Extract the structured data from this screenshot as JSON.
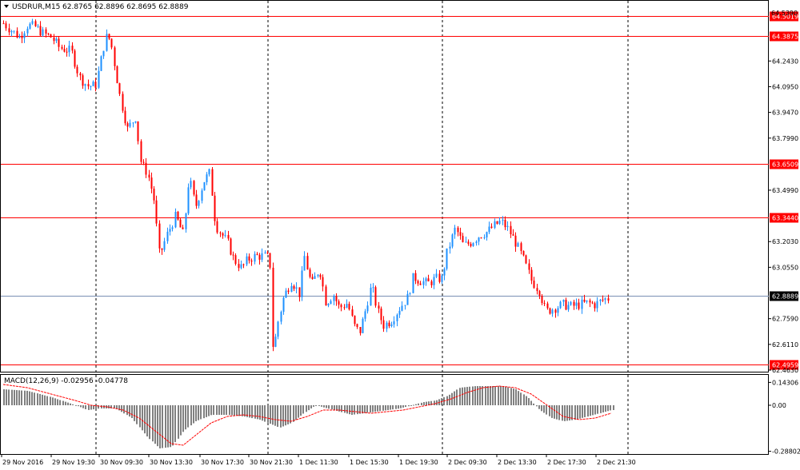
{
  "header": {
    "menu_icon": "triangle-down-icon",
    "symbol_timeframe": "USDRUR,M15",
    "ohlc": "62.8765 62.8896 62.8695 62.8889"
  },
  "colors": {
    "bull": "#1e90ff",
    "bear": "#ff0000",
    "level_line": "#ff0000",
    "price_line": "#7a8fb3",
    "histogram": "#808080",
    "signal": "#ff0000"
  },
  "price_axis": {
    "top_label": "64.5390",
    "ticks": [
      "64.5390",
      "64.2430",
      "64.0950",
      "63.9470",
      "63.7990",
      "63.4990",
      "63.2030",
      "63.0550",
      "62.7590",
      "62.6110",
      "62.4630"
    ],
    "levels": [
      {
        "value": 64.5019,
        "label": "64.5019"
      },
      {
        "value": 64.3875,
        "label": "64.3875"
      },
      {
        "value": 63.6509,
        "label": "63.6509"
      },
      {
        "value": 63.344,
        "label": "63.3440"
      },
      {
        "value": 62.4959,
        "label": "62.4959"
      }
    ],
    "current": {
      "value": 62.8889,
      "label": "62.8889"
    }
  },
  "indicator": {
    "title": "MACD(12,26,9) -0.02956 -0.04778",
    "ticks": [
      "0.14306",
      "0.00",
      "-0.28802"
    ]
  },
  "time_axis": {
    "labels": [
      "29 Nov 2016",
      "29 Nov 19:30",
      "30 Nov 09:30",
      "30 Nov 13:30",
      "30 Nov 17:30",
      "30 Nov 21:30",
      "1 Dec 11:30",
      "1 Dec 15:30",
      "1 Dec 19:30",
      "2 Dec 09:30",
      "2 Dec 13:30",
      "2 Dec 17:30",
      "2 Dec 21:30"
    ]
  },
  "chart_data": {
    "type": "candlestick",
    "symbol": "USDRUR",
    "timeframe": "M15",
    "ylim": [
      62.463,
      64.539
    ],
    "horizontal_levels": [
      64.5019,
      64.3875,
      63.6509,
      63.344,
      62.4959
    ],
    "current_price": 62.8889,
    "session_separators": [
      "29 Nov 19:30",
      "30 Nov 21:30",
      "2 Dec 09:30",
      "2 Dec 21:30"
    ],
    "price_path": [
      [
        0,
        64.46
      ],
      [
        10,
        64.42
      ],
      [
        20,
        64.38
      ],
      [
        30,
        64.45
      ],
      [
        40,
        64.44
      ],
      [
        50,
        64.4
      ],
      [
        60,
        64.38
      ],
      [
        70,
        64.32
      ],
      [
        85,
        64.3
      ],
      [
        95,
        64.15
      ],
      [
        105,
        64.1
      ],
      [
        115,
        64.1
      ],
      [
        120,
        64.2
      ],
      [
        125,
        64.32
      ],
      [
        130,
        64.4
      ],
      [
        135,
        64.33
      ],
      [
        145,
        64.05
      ],
      [
        155,
        63.85
      ],
      [
        165,
        63.92
      ],
      [
        172,
        63.65
      ],
      [
        180,
        63.6
      ],
      [
        188,
        63.45
      ],
      [
        195,
        63.12
      ],
      [
        205,
        63.25
      ],
      [
        215,
        63.35
      ],
      [
        225,
        63.24
      ],
      [
        232,
        63.58
      ],
      [
        240,
        63.4
      ],
      [
        250,
        63.55
      ],
      [
        258,
        63.6
      ],
      [
        265,
        63.3
      ],
      [
        272,
        63.25
      ],
      [
        280,
        63.2
      ],
      [
        288,
        63.1
      ],
      [
        298,
        63.05
      ],
      [
        305,
        63.1
      ],
      [
        315,
        63.12
      ],
      [
        325,
        63.12
      ],
      [
        333,
        63.11
      ],
      [
        337,
        62.55
      ],
      [
        342,
        62.72
      ],
      [
        350,
        62.88
      ],
      [
        360,
        62.98
      ],
      [
        370,
        62.9
      ],
      [
        376,
        63.12
      ],
      [
        385,
        62.95
      ],
      [
        395,
        63.05
      ],
      [
        403,
        62.85
      ],
      [
        412,
        62.9
      ],
      [
        420,
        62.82
      ],
      [
        430,
        62.85
      ],
      [
        438,
        62.72
      ],
      [
        445,
        62.68
      ],
      [
        452,
        62.8
      ],
      [
        460,
        62.95
      ],
      [
        468,
        62.8
      ],
      [
        475,
        62.72
      ],
      [
        485,
        62.75
      ],
      [
        495,
        62.82
      ],
      [
        505,
        62.88
      ],
      [
        512,
        63.0
      ],
      [
        520,
        62.98
      ],
      [
        530,
        62.96
      ],
      [
        540,
        62.99
      ],
      [
        548,
        62.99
      ],
      [
        555,
        63.15
      ],
      [
        565,
        63.28
      ],
      [
        575,
        63.18
      ],
      [
        585,
        63.2
      ],
      [
        595,
        63.24
      ],
      [
        605,
        63.26
      ],
      [
        615,
        63.3
      ],
      [
        622,
        63.32
      ],
      [
        630,
        63.28
      ],
      [
        640,
        63.2
      ],
      [
        650,
        63.1
      ],
      [
        660,
        62.98
      ],
      [
        670,
        62.92
      ],
      [
        678,
        62.8
      ],
      [
        688,
        62.82
      ],
      [
        700,
        62.84
      ],
      [
        710,
        62.83
      ],
      [
        720,
        62.84
      ],
      [
        730,
        62.85
      ],
      [
        740,
        62.84
      ],
      [
        750,
        62.87
      ],
      [
        760,
        62.88
      ]
    ],
    "macd": [
      [
        0,
        0.1
      ],
      [
        30,
        0.09
      ],
      [
        60,
        0.05
      ],
      [
        90,
        0.0
      ],
      [
        105,
        -0.03
      ],
      [
        120,
        -0.02
      ],
      [
        140,
        -0.02
      ],
      [
        160,
        -0.08
      ],
      [
        180,
        -0.2
      ],
      [
        195,
        -0.27
      ],
      [
        210,
        -0.26
      ],
      [
        225,
        -0.16
      ],
      [
        240,
        -0.1
      ],
      [
        260,
        -0.06
      ],
      [
        280,
        -0.06
      ],
      [
        300,
        -0.07
      ],
      [
        320,
        -0.09
      ],
      [
        335,
        -0.12
      ],
      [
        345,
        -0.14
      ],
      [
        360,
        -0.11
      ],
      [
        375,
        -0.05
      ],
      [
        390,
        0.0
      ],
      [
        405,
        -0.02
      ],
      [
        420,
        -0.04
      ],
      [
        435,
        -0.06
      ],
      [
        450,
        -0.05
      ],
      [
        465,
        -0.04
      ],
      [
        480,
        -0.03
      ],
      [
        495,
        -0.02
      ],
      [
        510,
        0.0
      ],
      [
        525,
        0.02
      ],
      [
        540,
        0.03
      ],
      [
        555,
        0.06
      ],
      [
        570,
        0.11
      ],
      [
        590,
        0.12
      ],
      [
        610,
        0.12
      ],
      [
        625,
        0.12
      ],
      [
        640,
        0.1
      ],
      [
        655,
        0.05
      ],
      [
        670,
        -0.03
      ],
      [
        685,
        -0.08
      ],
      [
        700,
        -0.1
      ],
      [
        715,
        -0.09
      ],
      [
        730,
        -0.07
      ],
      [
        745,
        -0.05
      ],
      [
        760,
        -0.03
      ]
    ],
    "signal": [
      [
        0,
        0.13
      ],
      [
        30,
        0.11
      ],
      [
        60,
        0.07
      ],
      [
        90,
        0.03
      ],
      [
        110,
        0.0
      ],
      [
        130,
        -0.01
      ],
      [
        150,
        -0.03
      ],
      [
        170,
        -0.08
      ],
      [
        190,
        -0.16
      ],
      [
        210,
        -0.24
      ],
      [
        225,
        -0.25
      ],
      [
        240,
        -0.19
      ],
      [
        260,
        -0.11
      ],
      [
        280,
        -0.07
      ],
      [
        300,
        -0.06
      ],
      [
        320,
        -0.07
      ],
      [
        340,
        -0.09
      ],
      [
        360,
        -0.1
      ],
      [
        380,
        -0.07
      ],
      [
        400,
        -0.03
      ],
      [
        420,
        -0.03
      ],
      [
        440,
        -0.04
      ],
      [
        460,
        -0.05
      ],
      [
        480,
        -0.04
      ],
      [
        500,
        -0.03
      ],
      [
        520,
        -0.01
      ],
      [
        540,
        0.01
      ],
      [
        560,
        0.04
      ],
      [
        580,
        0.08
      ],
      [
        600,
        0.11
      ],
      [
        620,
        0.12
      ],
      [
        640,
        0.11
      ],
      [
        660,
        0.07
      ],
      [
        680,
        0.0
      ],
      [
        700,
        -0.07
      ],
      [
        720,
        -0.09
      ],
      [
        740,
        -0.08
      ],
      [
        760,
        -0.05
      ]
    ]
  }
}
